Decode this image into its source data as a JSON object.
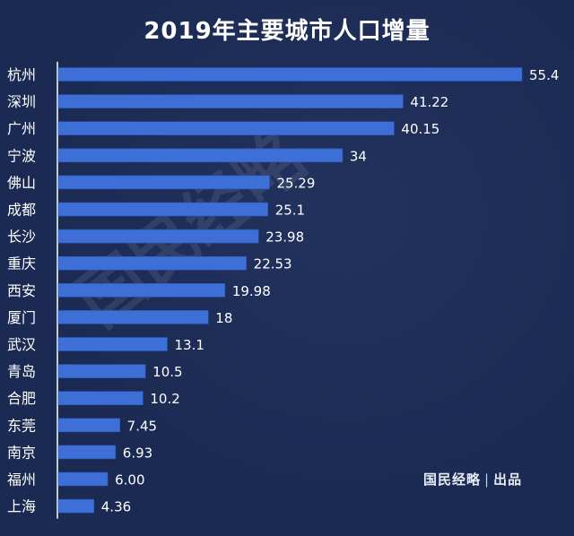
{
  "title": "2019年主要城市人口增量",
  "watermark": "国民经略",
  "publisher": {
    "brand": "国民经略",
    "separator": "|",
    "suffix": "出品"
  },
  "colors": {
    "background": "#1b2a52",
    "bar": "#3d6fd6",
    "bar_edge": "#2a55b8",
    "axis": "#ffffff",
    "text": "#ffffff"
  },
  "chart_data": {
    "type": "bar",
    "orientation": "horizontal",
    "title": "2019年主要城市人口增量",
    "xlabel": "",
    "ylabel": "",
    "xlim": [
      0,
      55.4
    ],
    "grid": false,
    "legend": "none",
    "categories": [
      "杭州",
      "深圳",
      "广州",
      "宁波",
      "佛山",
      "成都",
      "长沙",
      "重庆",
      "西安",
      "厦门",
      "武汉",
      "青岛",
      "合肥",
      "东莞",
      "南京",
      "福州",
      "上海"
    ],
    "values": [
      55.4,
      41.22,
      40.15,
      34,
      25.29,
      25.1,
      23.98,
      22.53,
      19.98,
      18,
      13.1,
      10.5,
      10.2,
      7.45,
      6.93,
      6.0,
      4.36
    ],
    "value_labels": [
      "55.4",
      "41.22",
      "40.15",
      "34",
      "25.29",
      "25.1",
      "23.98",
      "22.53",
      "19.98",
      "18",
      "13.1",
      "10.5",
      "10.2",
      "7.45",
      "6.93",
      "6.00",
      "4.36"
    ]
  }
}
